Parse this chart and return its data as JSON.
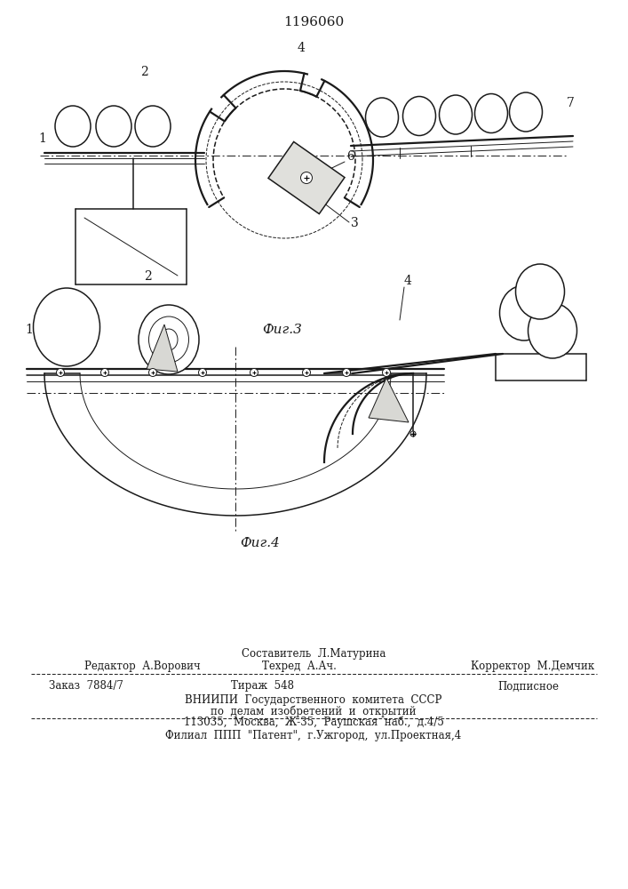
{
  "title": "1196060",
  "fig3_label": "Фиг.3",
  "fig4_label": "Фиг.4",
  "footer_line1": "Составитель  Л.Матурина",
  "footer_line2_left": "Редактор  А.Ворович",
  "footer_line2_mid": "Техред  А.Ач.",
  "footer_line2_right": "Корректор  М.Демчик",
  "footer_line3_left": "Заказ  7884/7",
  "footer_line3_mid": "Тираж  548",
  "footer_line3_right": "Подписное",
  "footer_line4": "ВНИИПИ  Государственного  комитета  СССР",
  "footer_line5": "по  делам  изобретений  и  открытий",
  "footer_line6": "113035,  Москва,  Ж-35,  Раушская  наб.,  д.4/5",
  "footer_line7": "Филиал  ППП  \"Патент\",  г.Ужгород,  ул.Проектная,4",
  "bg_color": "#ffffff",
  "line_color": "#1a1a1a"
}
